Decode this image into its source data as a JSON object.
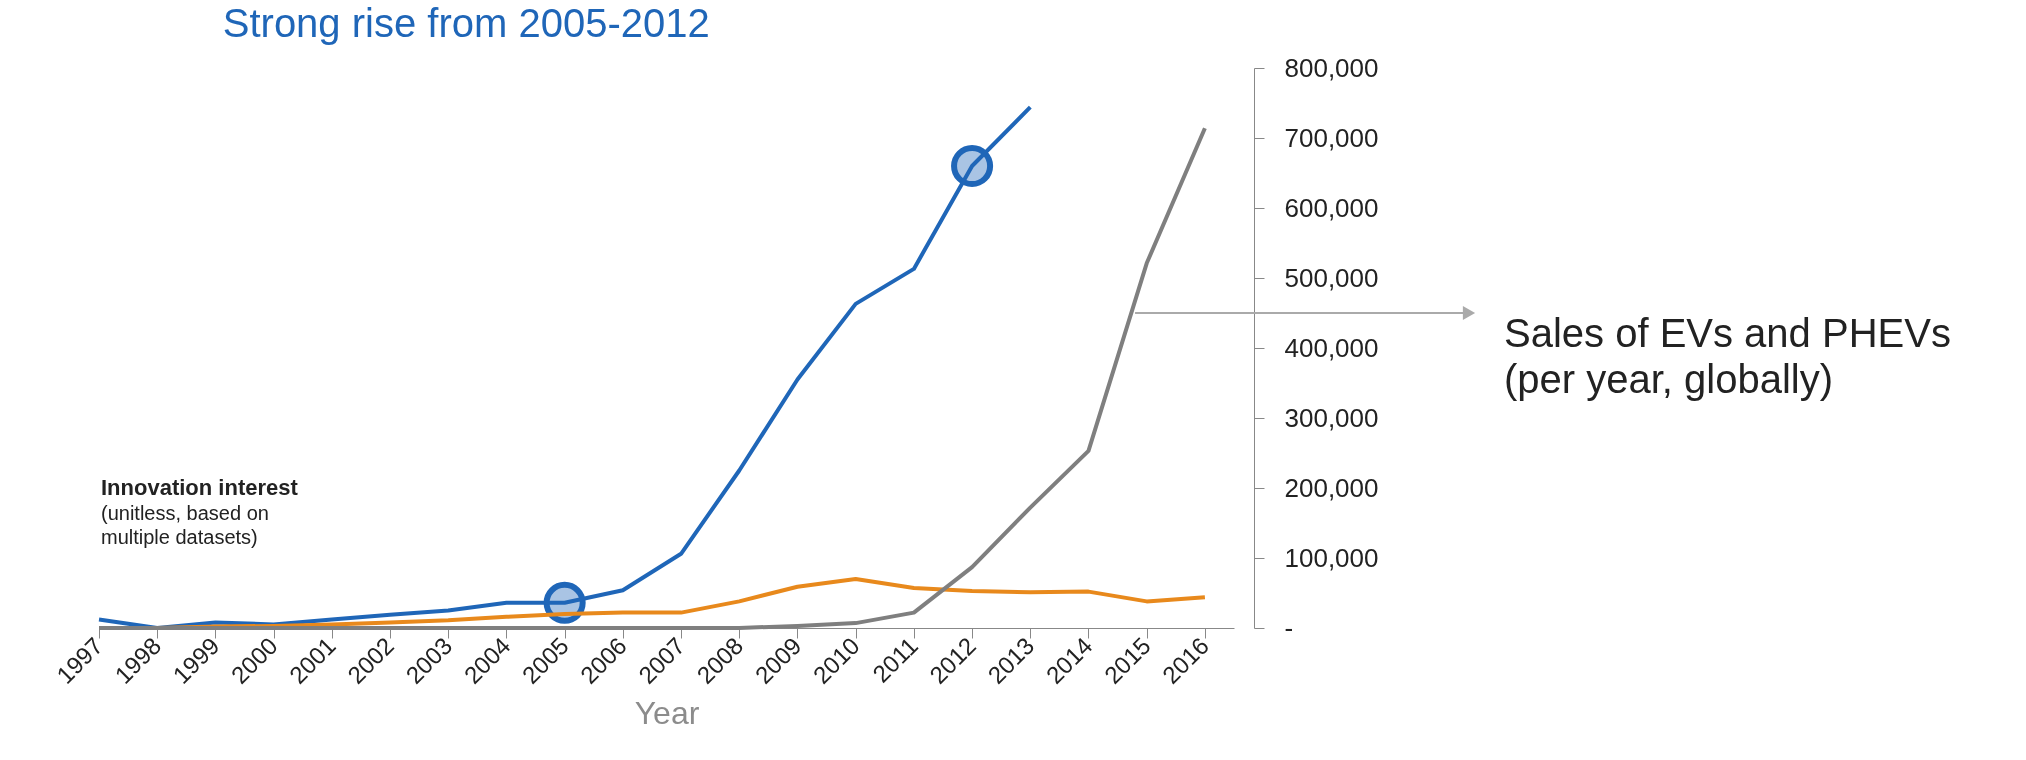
{
  "chart_data": {
    "type": "line",
    "title": "Strong rise from 2005-2012",
    "xlabel": "Year",
    "x": [
      1997,
      1998,
      1999,
      2000,
      2001,
      2002,
      2003,
      2004,
      2005,
      2006,
      2007,
      2008,
      2009,
      2010,
      2011,
      2012,
      2013,
      2014,
      2015,
      2016
    ],
    "xlim": [
      1997,
      2016.5
    ],
    "xticks": [
      1997,
      1998,
      1999,
      2000,
      2001,
      2002,
      2003,
      2004,
      2005,
      2006,
      2007,
      2008,
      2009,
      2010,
      2011,
      2012,
      2013,
      2014,
      2015,
      2016
    ],
    "ylim": [
      0,
      800000
    ],
    "yticks": [
      {
        "value": 0,
        "label": "-"
      },
      {
        "value": 100000,
        "label": "100,000"
      },
      {
        "value": 200000,
        "label": "200,000"
      },
      {
        "value": 300000,
        "label": "300,000"
      },
      {
        "value": 400000,
        "label": "400,000"
      },
      {
        "value": 500000,
        "label": "500,000"
      },
      {
        "value": 600000,
        "label": "600,000"
      },
      {
        "value": 700000,
        "label": "700,000"
      },
      {
        "value": 800000,
        "label": "800,000"
      }
    ],
    "series": [
      {
        "color": "#1f66b8",
        "values": [
          12000,
          0,
          8000,
          5000,
          12000,
          19000,
          25000,
          36000,
          36000,
          54000,
          106000,
          225000,
          355000,
          463000,
          513000,
          660000,
          744000,
          null,
          null,
          null
        ]
      },
      {
        "color": "#e8891c",
        "values": [
          0,
          0,
          2000,
          3000,
          5000,
          8000,
          11000,
          16000,
          20000,
          22000,
          22000,
          38000,
          59000,
          70000,
          57000,
          53000,
          51000,
          52000,
          38000,
          44000
        ]
      },
      {
        "color": "#7f7f7f",
        "values": [
          0,
          0,
          0,
          0,
          0,
          0,
          0,
          0,
          0,
          0,
          0,
          0,
          3000,
          7000,
          22000,
          87000,
          172000,
          253000,
          521000,
          714000
        ]
      },
      {
        "type": "scatter",
        "marker": "circle",
        "color": "#1f66b8",
        "x": [
          2005,
          2012
        ],
        "values": [
          36000,
          660000
        ]
      }
    ],
    "annotations": [
      {
        "text": "Sales of EVs and PHEVs\n(per year, globally)",
        "x": 2014.8,
        "y": 450000
      },
      "Innovation interest",
      "(unitless, based on\nmultiple datasets)"
    ],
    "grid": false,
    "line_style": "solid"
  }
}
